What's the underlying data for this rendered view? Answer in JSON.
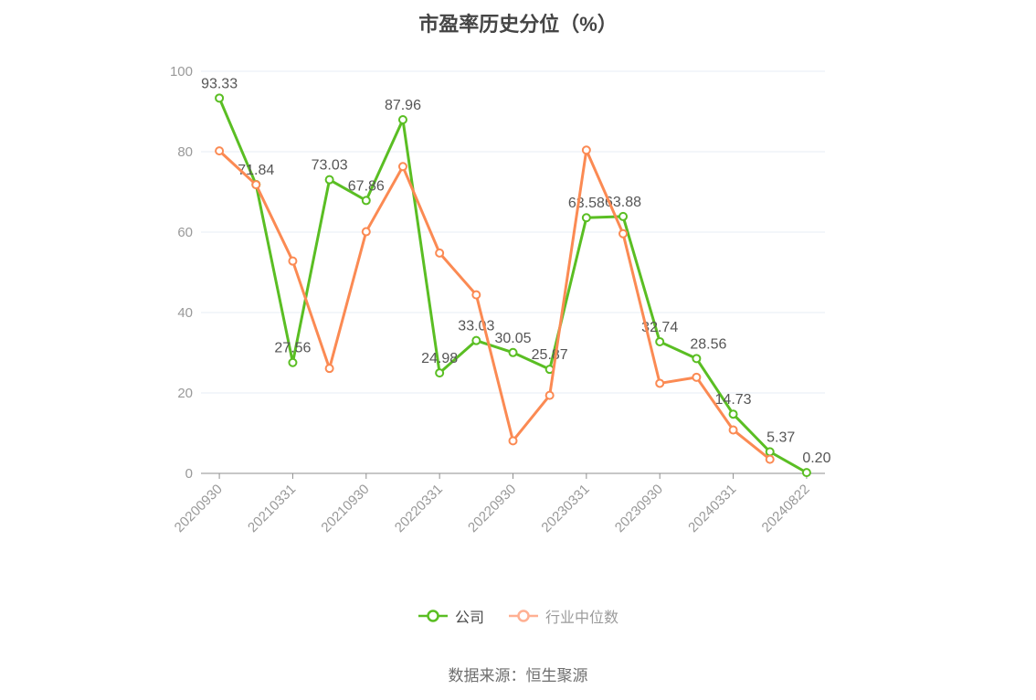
{
  "background": "#ffffff",
  "title": "市盈率历史分位（%）",
  "source_note": "数据来源：恒生聚源",
  "chart_data": {
    "type": "line",
    "title": "市盈率历史分位（%）",
    "legend_position": "bottom",
    "grid": "horizontal",
    "ylim": [
      0,
      100
    ],
    "yticks": [
      0,
      20,
      40,
      60,
      80,
      100
    ],
    "n_points": 17,
    "x_label_every_n_points": 2,
    "x_tick_labels": [
      "20200930",
      "20210331",
      "20210930",
      "20220331",
      "20220930",
      "20230331",
      "20230930",
      "20240331",
      "20240822"
    ],
    "axis_colors": {
      "tick_label": "#999999",
      "axis_line": "#8f8f8f",
      "gridline": "#e7ecf4"
    },
    "point_label_color": "#555555",
    "series": [
      {
        "name": "公司",
        "color": "#5abe23",
        "legend_icon_color": "#5abe23",
        "legend_text_color": "#4a4a4a",
        "show_point_labels": true,
        "values": [
          93.33,
          71.84,
          27.56,
          73.03,
          67.86,
          87.96,
          24.98,
          33.03,
          30.05,
          25.87,
          63.58,
          63.88,
          32.74,
          28.56,
          14.73,
          5.37,
          0.2
        ],
        "point_labels": [
          "93.33",
          "71.84",
          "27.56",
          "73.03",
          "67.86",
          "87.96",
          "24.98",
          "33.03",
          "30.05",
          "25.87",
          "63.58",
          "63.88",
          "32.74",
          "28.56",
          "14.73",
          "5.37",
          "0.20"
        ]
      },
      {
        "name": "行业中位数",
        "color": "#fb8a53",
        "legend_icon_color": "#ffb093",
        "legend_text_color": "#9b9b9b",
        "show_point_labels": false,
        "values": [
          80.2,
          71.8,
          52.8,
          26.1,
          60.1,
          76.3,
          54.8,
          44.4,
          8.1,
          19.4,
          80.4,
          59.6,
          22.4,
          23.9,
          10.8,
          3.5,
          null
        ]
      }
    ]
  }
}
